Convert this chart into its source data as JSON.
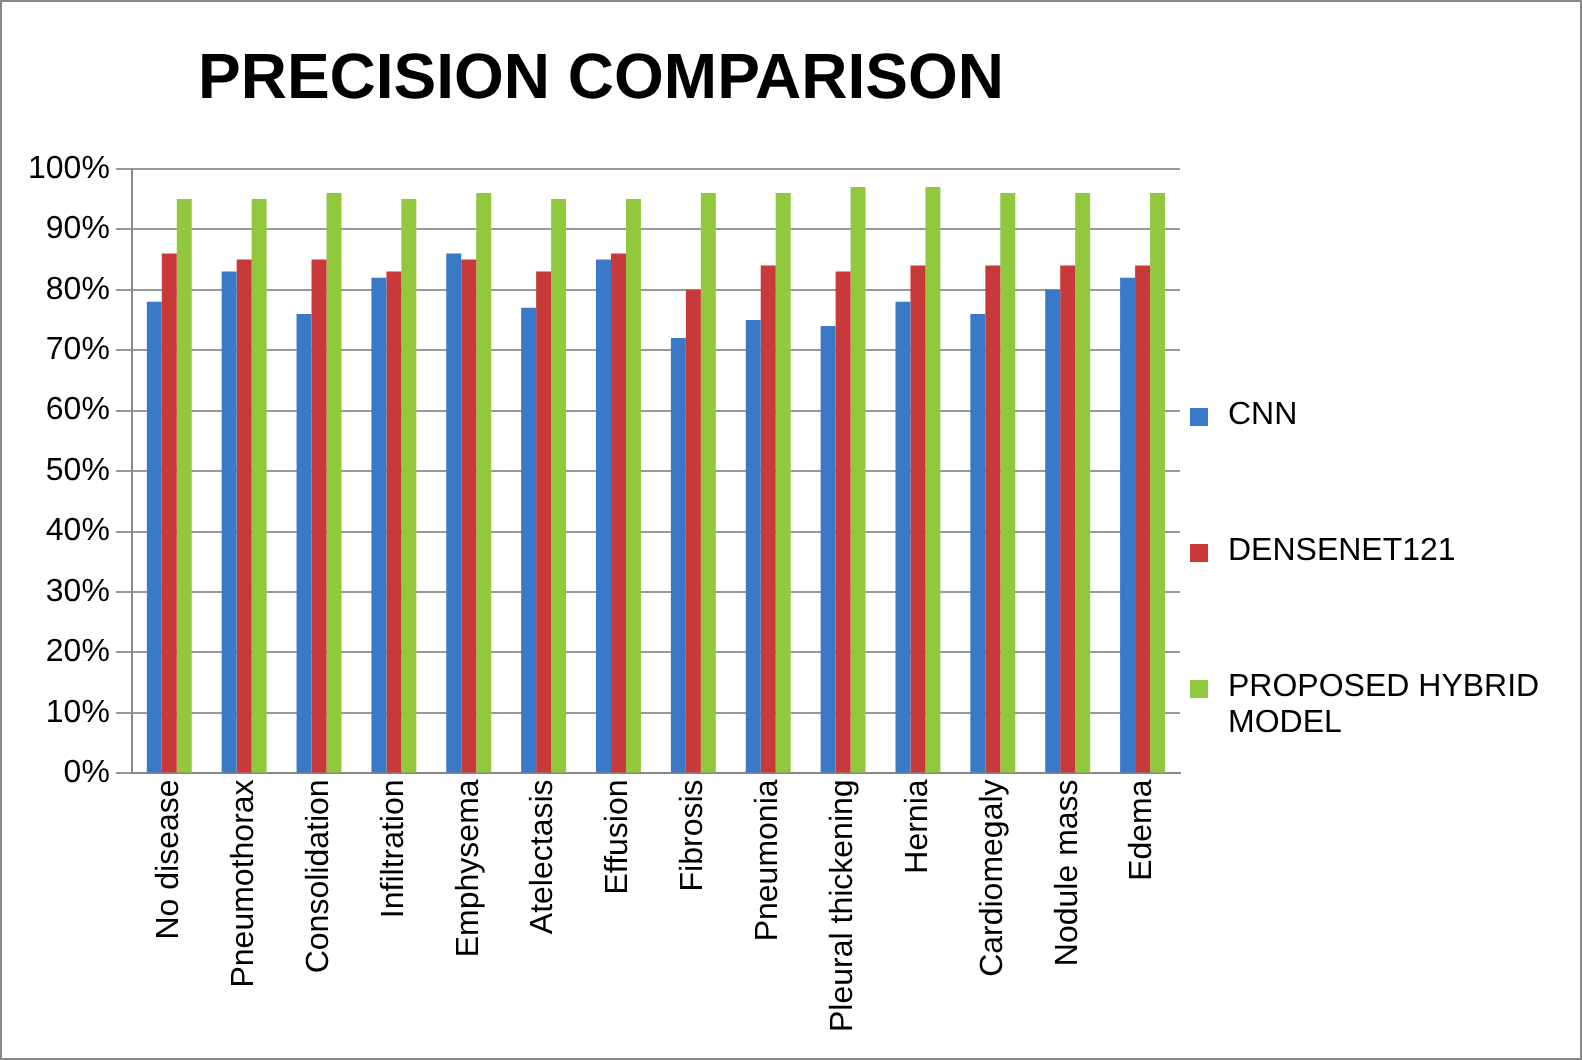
{
  "chart_data": {
    "type": "bar",
    "title": "PRECISION COMPARISON",
    "categories": [
      "No disease",
      "Pneumothorax",
      "Consolidation",
      "Infiltration",
      "Emphysema",
      "Atelectasis",
      "Effusion",
      "Fibrosis",
      "Pneumonia",
      "Pleural thickening",
      "Hernia",
      "Cardiomegaly",
      "Nodule mass",
      "Edema"
    ],
    "series": [
      {
        "name": "CNN",
        "color": "#3a78c8",
        "values": [
          78,
          83,
          76,
          82,
          86,
          77,
          85,
          72,
          75,
          74,
          78,
          76,
          80,
          82
        ]
      },
      {
        "name": "DENSENET121",
        "color": "#c83a3a",
        "values": [
          86,
          85,
          85,
          83,
          85,
          83,
          86,
          80,
          84,
          83,
          84,
          84,
          84,
          84
        ]
      },
      {
        "name": "PROPOSED HYBRID MODEL",
        "color": "#92c83e",
        "values": [
          95,
          95,
          96,
          95,
          96,
          95,
          95,
          96,
          96,
          97,
          97,
          96,
          96,
          96
        ]
      }
    ],
    "ylim": [
      0,
      100
    ],
    "yticks": [
      {
        "value": 0,
        "label": "0%"
      },
      {
        "value": 10,
        "label": "10%"
      },
      {
        "value": 20,
        "label": "20%"
      },
      {
        "value": 30,
        "label": "30%"
      },
      {
        "value": 40,
        "label": "40%"
      },
      {
        "value": 50,
        "label": "50%"
      },
      {
        "value": 60,
        "label": "60%"
      },
      {
        "value": 70,
        "label": "70%"
      },
      {
        "value": 80,
        "label": "80%"
      },
      {
        "value": 90,
        "label": "90%"
      },
      {
        "value": 100,
        "label": "100%"
      }
    ],
    "grid": "y",
    "legend": "right"
  }
}
